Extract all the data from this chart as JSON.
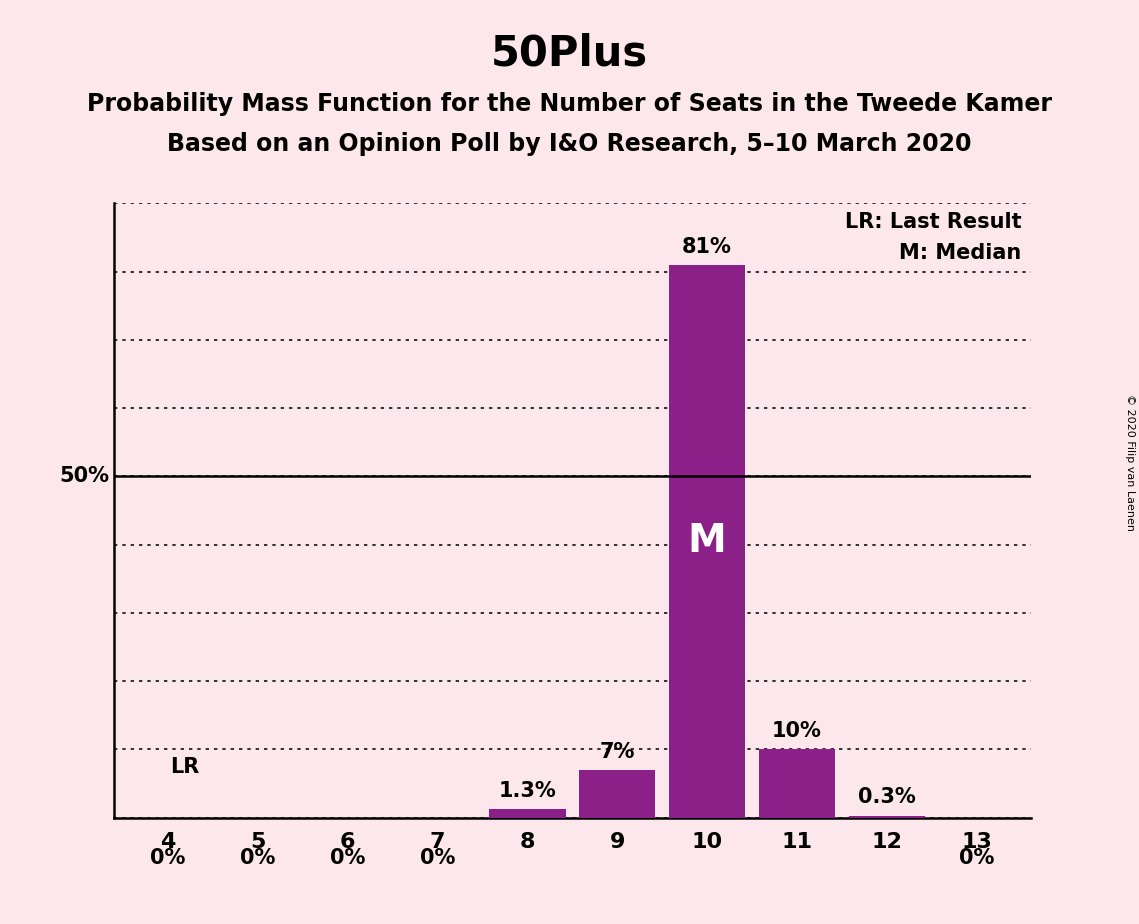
{
  "title": "50Plus",
  "subtitle1": "Probability Mass Function for the Number of Seats in the Tweede Kamer",
  "subtitle2": "Based on an Opinion Poll by I&O Research, 5–10 March 2020",
  "copyright": "© 2020 Filip van Laenen",
  "background_color": "#fce8ec",
  "bar_color": "#8b2089",
  "categories": [
    4,
    5,
    6,
    7,
    8,
    9,
    10,
    11,
    12,
    13
  ],
  "values": [
    0.0,
    0.0,
    0.0,
    0.0,
    1.3,
    7.0,
    81.0,
    10.0,
    0.3,
    0.0
  ],
  "labels": [
    "0%",
    "0%",
    "0%",
    "0%",
    "1.3%",
    "7%",
    "81%",
    "10%",
    "0.3%",
    "0%"
  ],
  "median_seat": 10,
  "lr_seat": 4,
  "ylim_max": 90,
  "ytick_interval": 10,
  "ylabel_50": "50%",
  "legend_lr": "LR: Last Result",
  "legend_m": "M: Median",
  "title_fontsize": 30,
  "subtitle_fontsize": 17,
  "label_fontsize": 15,
  "tick_fontsize": 16,
  "legend_fontsize": 15,
  "lr_label": "LR"
}
